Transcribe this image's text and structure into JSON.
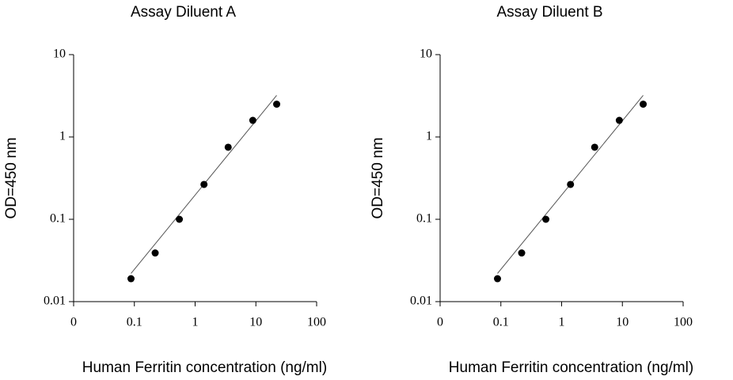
{
  "chart_data": [
    {
      "type": "scatter",
      "title": "Assay Diluent A",
      "xlabel": "Human Ferritin concentration (ng/ml)",
      "ylabel": "OD=450 nm",
      "xscale": "log",
      "yscale": "log",
      "xlim": [
        0.01,
        100
      ],
      "ylim": [
        0.01,
        10
      ],
      "xticks": [
        {
          "value": 0.01,
          "label": "0"
        },
        0.1,
        1,
        10,
        100
      ],
      "yticks": [
        0.01,
        0.1,
        1,
        10
      ],
      "series": [
        {
          "color": "#000000",
          "x": [
            0.088,
            0.22,
            0.55,
            1.4,
            3.5,
            8.9,
            22
          ],
          "values": [
            0.019,
            0.039,
            0.1,
            0.265,
            0.75,
            1.59,
            2.5
          ]
        }
      ],
      "fit_line": {
        "color": "#555555",
        "x": [
          0.088,
          22
        ],
        "values": [
          0.022,
          3.2
        ]
      }
    },
    {
      "type": "scatter",
      "title": "Assay Diluent B",
      "xlabel": "Human Ferritin concentration (ng/ml)",
      "ylabel": "OD=450 nm",
      "xscale": "log",
      "yscale": "log",
      "xlim": [
        0.01,
        100
      ],
      "ylim": [
        0.01,
        10
      ],
      "xticks": [
        {
          "value": 0.01,
          "label": "0"
        },
        0.1,
        1,
        10,
        100
      ],
      "yticks": [
        0.01,
        0.1,
        1,
        10
      ],
      "series": [
        {
          "color": "#000000",
          "x": [
            0.088,
            0.22,
            0.55,
            1.4,
            3.5,
            8.9,
            22
          ],
          "values": [
            0.019,
            0.039,
            0.1,
            0.265,
            0.75,
            1.59,
            2.5
          ]
        }
      ],
      "fit_line": {
        "color": "#555555",
        "x": [
          0.088,
          22
        ],
        "values": [
          0.022,
          3.2
        ]
      }
    }
  ]
}
